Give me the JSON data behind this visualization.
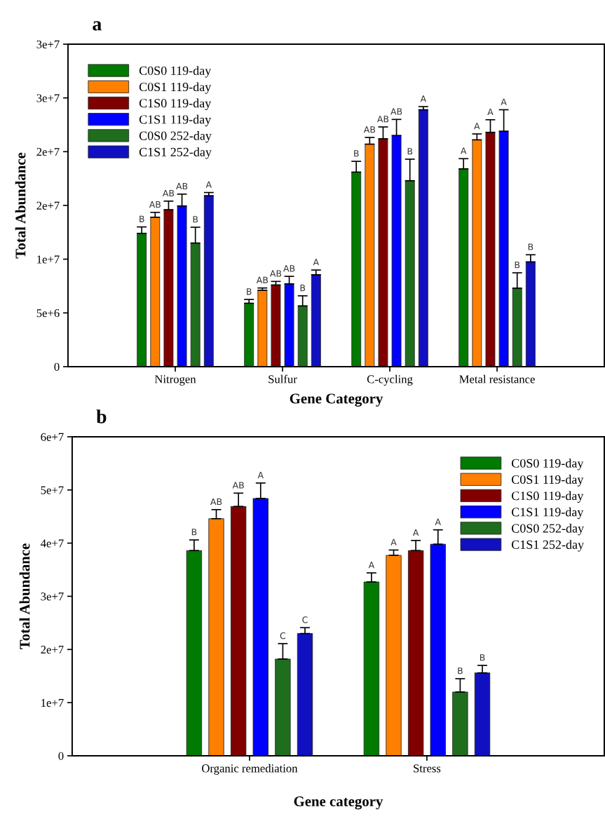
{
  "chart_data": [
    {
      "type": "bar",
      "title": "a",
      "xlabel": "Gene Category",
      "ylabel": "Total Abundance",
      "categories": [
        "Nitrogen",
        "Sulfur",
        "C-cycling",
        "Metal resistance"
      ],
      "ylim": [
        0,
        30000000
      ],
      "yticks": [
        0,
        {
          "value": 5000000,
          "label": "5e+6"
        },
        {
          "value": 10000000,
          "label": "1e+7"
        },
        {
          "value": 15000000,
          "label": "2e+7"
        },
        {
          "value": 20000000,
          "label": "2e+7"
        },
        {
          "value": 25000000,
          "label": "3e+7"
        },
        {
          "value": 30000000,
          "label": "3e+7"
        }
      ],
      "legend": "top left",
      "grid": false,
      "series": [
        {
          "name": "C0S0 119-day",
          "color": "#007a00",
          "values": [
            12400000,
            5900000,
            18100000,
            18400000
          ],
          "errors": [
            600000,
            350000,
            1000000,
            950000
          ],
          "value_labels": [
            "B",
            "B",
            "B",
            "A"
          ]
        },
        {
          "name": "C0S1 119-day",
          "color": "#ff8000",
          "values": [
            13900000,
            7100000,
            20700000,
            21100000
          ],
          "errors": [
            450000,
            220000,
            620000,
            550000
          ],
          "value_labels": [
            "AB",
            "AB",
            "AB",
            "A"
          ]
        },
        {
          "name": "C1S0 119-day",
          "color": "#800000",
          "values": [
            14600000,
            7600000,
            21200000,
            21800000
          ],
          "errors": [
            800000,
            330000,
            1100000,
            1170000
          ],
          "value_labels": [
            "AB",
            "AB",
            "AB",
            "A"
          ]
        },
        {
          "name": "C1S1 119-day",
          "color": "#0000ff",
          "values": [
            14950000,
            7700000,
            21500000,
            21900000
          ],
          "errors": [
            1100000,
            700000,
            1500000,
            2000000
          ],
          "value_labels": [
            "AB",
            "AB",
            "AB",
            "A"
          ]
        },
        {
          "name": "C0S0 252-day",
          "color": "#1e6e1e",
          "values": [
            11500000,
            5650000,
            17300000,
            7300000
          ],
          "errors": [
            1470000,
            940000,
            2000000,
            1430000
          ],
          "value_labels": [
            "B",
            "B",
            "B",
            "B"
          ]
        },
        {
          "name": "C1S1 252-day",
          "color": "#1010c0",
          "values": [
            15900000,
            8550000,
            23900000,
            9750000
          ],
          "errors": [
            300000,
            440000,
            290000,
            660000
          ],
          "value_labels": [
            "A",
            "A",
            "A",
            "B"
          ]
        }
      ]
    },
    {
      "type": "bar",
      "title": "b",
      "xlabel": "Gene category",
      "ylabel": "Total Abundance",
      "categories": [
        "Organic remediation",
        "Stress"
      ],
      "ylim": [
        0,
        60000000
      ],
      "yticks": [
        0,
        {
          "value": 10000000,
          "label": "1e+7"
        },
        {
          "value": 20000000,
          "label": "2e+7"
        },
        {
          "value": 30000000,
          "label": "3e+7"
        },
        {
          "value": 40000000,
          "label": "4e+7"
        },
        {
          "value": 50000000,
          "label": "5e+7"
        },
        {
          "value": 60000000,
          "label": "6e+7"
        }
      ],
      "legend": "top right",
      "grid": false,
      "series": [
        {
          "name": "C0S0 119-day",
          "color": "#007a00",
          "values": [
            38600000,
            32700000
          ],
          "errors": [
            2000000,
            1700000
          ],
          "value_labels": [
            "B",
            "A"
          ]
        },
        {
          "name": "C0S1 119-day",
          "color": "#ff8000",
          "values": [
            44600000,
            37700000
          ],
          "errors": [
            1700000,
            1000000
          ],
          "value_labels": [
            "AB",
            "A"
          ]
        },
        {
          "name": "C1S0 119-day",
          "color": "#800000",
          "values": [
            46900000,
            38600000
          ],
          "errors": [
            2500000,
            1900000
          ],
          "value_labels": [
            "AB",
            "A"
          ]
        },
        {
          "name": "C1S1 119-day",
          "color": "#0000ff",
          "values": [
            48400000,
            39800000
          ],
          "errors": [
            2900000,
            2700000
          ],
          "value_labels": [
            "A",
            "A"
          ]
        },
        {
          "name": "C0S0 252-day",
          "color": "#1e6e1e",
          "values": [
            18200000,
            12000000
          ],
          "errors": [
            2900000,
            2500000
          ],
          "value_labels": [
            "C",
            "B"
          ]
        },
        {
          "name": "C1S1 252-day",
          "color": "#1010c0",
          "values": [
            23000000,
            15600000
          ],
          "errors": [
            1100000,
            1400000
          ],
          "value_labels": [
            "C",
            "B"
          ]
        }
      ]
    }
  ]
}
